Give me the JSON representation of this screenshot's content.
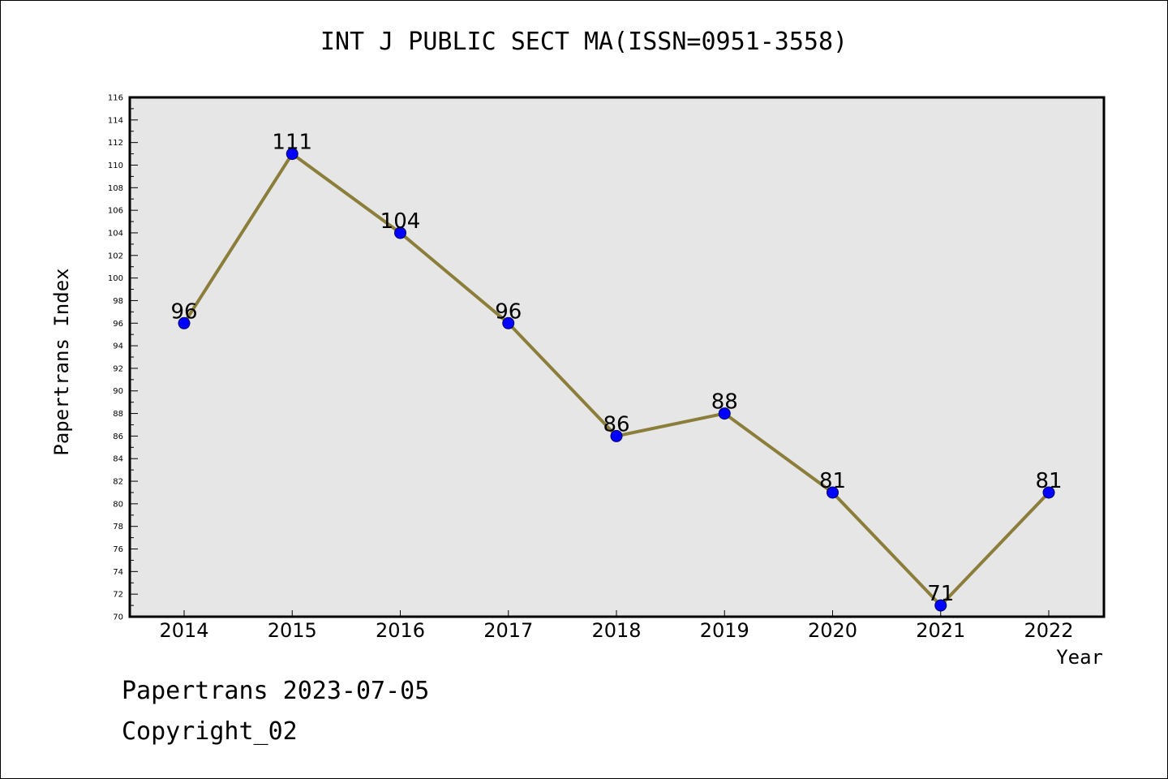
{
  "chart_data": {
    "type": "line",
    "title": "INT J PUBLIC SECT MA(ISSN=0951-3558)",
    "xlabel": "Year",
    "ylabel": "Papertrans Index",
    "categories": [
      "2014",
      "2015",
      "2016",
      "2017",
      "2018",
      "2019",
      "2020",
      "2021",
      "2022"
    ],
    "values": [
      96,
      111,
      104,
      96,
      86,
      88,
      81,
      71,
      81
    ],
    "ylim": [
      70,
      116
    ],
    "yticks": [
      70,
      72,
      74,
      76,
      78,
      80,
      82,
      84,
      86,
      88,
      90,
      92,
      94,
      96,
      98,
      100,
      102,
      104,
      106,
      108,
      110,
      112,
      114,
      116
    ],
    "grid": false,
    "legend": "none",
    "colors": {
      "plot_background": "#e6e6e6",
      "line": "#8b7d3a",
      "marker": "#0000ff"
    }
  },
  "footer": {
    "date_text": "Papertrans 2023-07-05",
    "copyright_text": "Copyright_02"
  }
}
